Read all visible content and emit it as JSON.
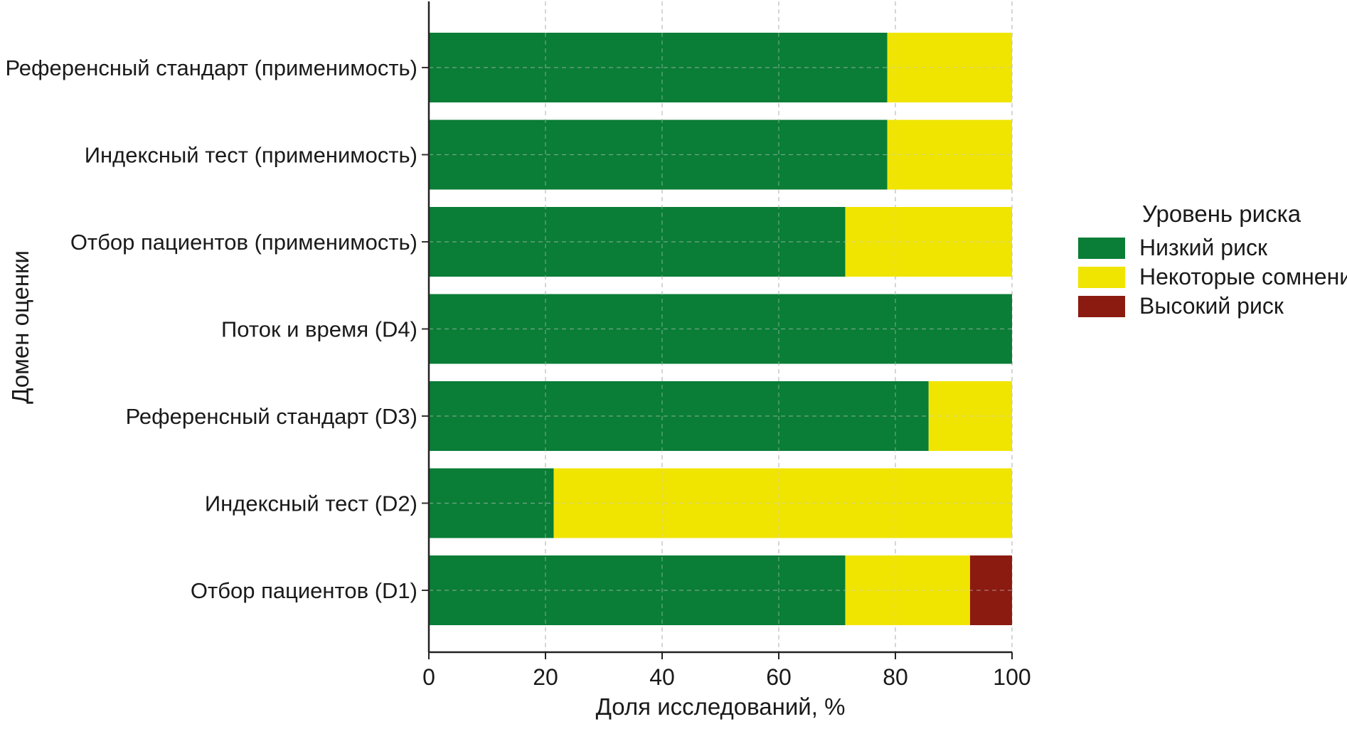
{
  "chart_data": {
    "type": "bar",
    "orientation": "horizontal",
    "stacked": true,
    "categories": [
      "Отбор пациентов (D1)",
      "Индексный тест (D2)",
      "Референсный стандарт (D3)",
      "Поток и время (D4)",
      "Отбор пациентов (применимость)",
      "Индексный тест (применимость)",
      "Референсный стандарт (применимость)"
    ],
    "series": [
      {
        "name": "Низкий риск",
        "color": "#0a7d36",
        "values": [
          71.4,
          21.4,
          85.7,
          100,
          71.4,
          78.6,
          78.6
        ]
      },
      {
        "name": "Некоторые сомнения",
        "color": "#f0e500",
        "values": [
          21.4,
          78.6,
          14.3,
          0,
          28.6,
          21.4,
          21.4
        ]
      },
      {
        "name": "Высокий риск",
        "color": "#8b1a10",
        "values": [
          7.2,
          0,
          0,
          0,
          0,
          0,
          0
        ]
      }
    ],
    "xlabel": "Доля исследований, %",
    "ylabel": "Домен оценки",
    "xlim": [
      0,
      100
    ],
    "xticks": [
      "0",
      "20",
      "40",
      "60",
      "80",
      "100"
    ],
    "grid": true,
    "legend": {
      "title": "Уровень риска",
      "position": "right"
    }
  }
}
